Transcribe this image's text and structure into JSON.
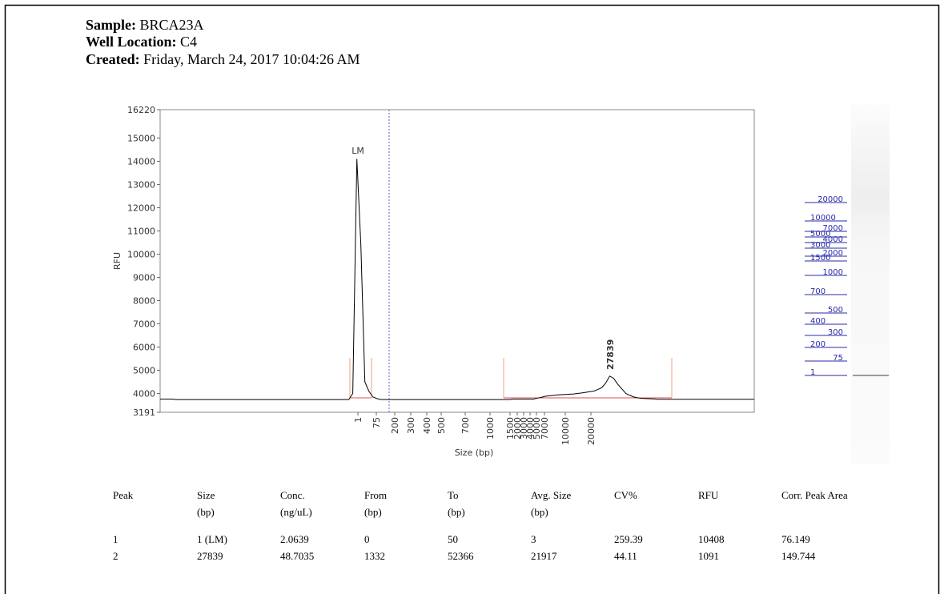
{
  "header": {
    "sample_label": "Sample:",
    "sample": "BRCA23A",
    "well_label": "Well Location:",
    "well": "C4",
    "created_label": "Created:",
    "created": "Friday, March 24, 2017 10:04:26 AM"
  },
  "chart_data": {
    "type": "line",
    "x_label": "Size (bp)",
    "y_label": "RFU",
    "ylim": [
      3191,
      16220
    ],
    "yticks": [
      3191,
      4000,
      5000,
      6000,
      7000,
      8000,
      9000,
      10000,
      11000,
      12000,
      13000,
      14000,
      15000,
      16220
    ],
    "xticks": [
      1,
      75,
      200,
      300,
      400,
      500,
      700,
      1000,
      1500,
      2000,
      3000,
      4000,
      5000,
      7000,
      10000,
      20000
    ],
    "annotations": [
      "LM",
      "27839"
    ],
    "series": [
      {
        "color": "#000000",
        "values": [
          3760,
          3760,
          3760,
          3760,
          3740,
          3740,
          3740,
          3740,
          3740,
          3740,
          3740,
          3740,
          3740,
          3740,
          3740,
          3740,
          3740,
          3740,
          3740,
          3740,
          3740,
          3740,
          3740,
          3740,
          3740,
          3740,
          3740,
          3740,
          3740,
          3740,
          3740,
          3740,
          3740,
          3740,
          3740,
          3740,
          3740,
          3740,
          3740,
          3740,
          3740,
          3740,
          3740,
          3740,
          3740,
          3740,
          3740,
          3740,
          4000,
          14100,
          10400,
          4500,
          4100,
          3850,
          3780,
          3740,
          3740,
          3740,
          3740,
          3740,
          3740,
          3740,
          3740,
          3740,
          3740,
          3740,
          3740,
          3740,
          3740,
          3740,
          3740,
          3740,
          3740,
          3740,
          3740,
          3740,
          3740,
          3740,
          3740,
          3740,
          3740,
          3740,
          3740,
          3740,
          3740,
          3740,
          3740,
          3740,
          3760,
          3760,
          3760,
          3760,
          3760,
          3760,
          3800,
          3840,
          3880,
          3900,
          3920,
          3940,
          3950,
          3960,
          3970,
          3980,
          4000,
          4020,
          4050,
          4080,
          4100,
          4170,
          4250,
          4450,
          4750,
          4650,
          4400,
          4200,
          4000,
          3920,
          3850,
          3810,
          3790,
          3780,
          3775,
          3770,
          3750,
          3750,
          3750,
          3750,
          3750,
          3750,
          3750,
          3750,
          3750,
          3750,
          3750,
          3750,
          3750,
          3750,
          3750,
          3750,
          3750,
          3750,
          3750,
          3750,
          3750,
          3750,
          3750,
          3750,
          3750
        ]
      }
    ]
  },
  "ladder": [
    20000,
    10000,
    7000,
    5000,
    4000,
    3000,
    2000,
    1500,
    1000,
    700,
    500,
    400,
    300,
    200,
    75,
    1
  ],
  "table": {
    "headers": [
      [
        "Peak",
        ""
      ],
      [
        "Size",
        "(bp)"
      ],
      [
        "Conc.",
        "(ng/uL)"
      ],
      [
        "From",
        "(bp)"
      ],
      [
        "To",
        "(bp)"
      ],
      [
        "Avg. Size",
        "(bp)"
      ],
      [
        "CV%",
        ""
      ],
      [
        "RFU",
        ""
      ],
      [
        "Corr. Peak Area",
        ""
      ]
    ],
    "rows": [
      [
        "1",
        "1 (LM)",
        "2.0639",
        "0",
        "50",
        "3",
        "259.39",
        "10408",
        "76.149"
      ],
      [
        "2",
        "27839",
        "48.7035",
        "1332",
        "52366",
        "21917",
        "44.11",
        "1091",
        "149.744"
      ]
    ]
  }
}
